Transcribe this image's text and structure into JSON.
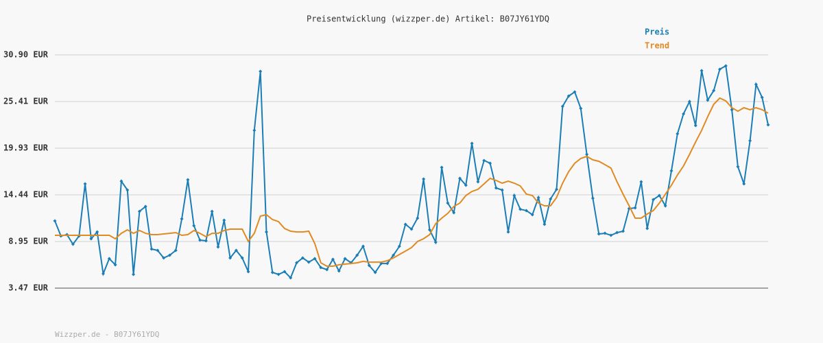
{
  "chart_data": {
    "type": "line",
    "title": "Preisentwicklung (wizzper.de) Artikel: B07JY61YDQ",
    "source": "Wizzper.de - B07JY61YDQ",
    "categories": [
      null,
      null,
      null,
      null,
      null,
      null,
      null,
      null,
      null,
      null,
      null,
      null,
      null,
      null,
      null,
      null,
      null,
      null,
      null,
      null,
      null,
      null,
      null,
      null,
      null,
      null,
      null,
      null,
      null,
      null,
      null,
      null,
      null,
      null,
      null,
      null,
      null,
      null,
      null,
      null,
      null,
      null,
      null,
      null,
      null,
      null,
      null,
      null,
      null,
      null,
      null,
      null,
      null,
      null,
      null,
      null,
      null,
      null,
      null,
      null,
      null,
      null,
      null,
      null,
      null,
      null,
      null,
      null,
      null,
      null,
      null,
      null,
      null,
      null,
      null,
      null,
      null,
      null,
      null,
      null,
      null,
      null,
      null,
      null,
      null,
      null,
      null,
      null,
      null,
      null,
      null,
      null,
      null,
      null,
      null,
      null,
      null,
      null,
      null,
      null,
      null,
      null,
      null,
      null,
      null,
      null,
      null,
      null,
      null,
      null,
      null,
      null,
      null,
      null,
      null,
      null,
      null,
      null,
      null
    ],
    "series": [
      {
        "name": "Preis",
        "color": "#1a7db6",
        "markers": true,
        "values": [
          11.38,
          9.6,
          9.76,
          8.63,
          9.6,
          15.73,
          9.28,
          10.08,
          5.16,
          6.94,
          6.21,
          16.05,
          15.01,
          5.08,
          12.5,
          13.07,
          8.07,
          7.91,
          7.02,
          7.34,
          7.91,
          11.62,
          16.22,
          10.81,
          9.12,
          9.04,
          12.5,
          8.31,
          11.46,
          7.02,
          7.91,
          7.02,
          5.41,
          22.03,
          28.96,
          10.08,
          5.32,
          5.08,
          5.41,
          4.68,
          6.45,
          7.02,
          6.53,
          6.94,
          5.89,
          5.65,
          6.86,
          5.49,
          6.94,
          6.45,
          7.34,
          8.39,
          6.13,
          5.32,
          6.37,
          6.37,
          7.34,
          8.39,
          10.97,
          10.41,
          11.7,
          16.3,
          10.33,
          8.87,
          17.67,
          13.47,
          12.34,
          16.38,
          15.57,
          20.49,
          15.97,
          18.48,
          18.15,
          15.25,
          15.01,
          10.08,
          14.36,
          12.75,
          12.59,
          12.1,
          14.12,
          10.97,
          13.96,
          15.09,
          24.85,
          26.06,
          26.54,
          24.61,
          19.2,
          14.04,
          9.84,
          9.92,
          9.68,
          10.0,
          10.17,
          12.83,
          12.91,
          15.97,
          10.49,
          13.88,
          14.36,
          13.15,
          17.27,
          21.62,
          23.96,
          25.41,
          22.59,
          29.04,
          25.58,
          26.7,
          29.21,
          29.61,
          24.45,
          17.75,
          15.73,
          20.81,
          27.43,
          25.9,
          22.67
        ]
      },
      {
        "name": "Trend",
        "color": "#e08a22",
        "markers": false,
        "values": [
          9.68,
          9.68,
          9.68,
          9.68,
          9.68,
          9.68,
          9.68,
          9.68,
          9.68,
          9.68,
          9.28,
          9.92,
          10.33,
          9.92,
          10.25,
          9.92,
          9.76,
          9.76,
          9.84,
          9.92,
          10.0,
          9.68,
          9.76,
          10.25,
          9.92,
          9.52,
          9.92,
          9.92,
          10.25,
          10.41,
          10.41,
          10.41,
          8.96,
          9.92,
          11.94,
          12.1,
          11.54,
          11.29,
          10.49,
          10.17,
          10.08,
          10.08,
          10.17,
          8.71,
          6.45,
          6.05,
          6.05,
          6.21,
          6.29,
          6.37,
          6.45,
          6.62,
          6.53,
          6.53,
          6.53,
          6.7,
          7.02,
          7.42,
          7.83,
          8.23,
          8.96,
          9.28,
          9.76,
          11.05,
          11.7,
          12.26,
          13.07,
          13.47,
          14.36,
          14.84,
          15.09,
          15.73,
          16.38,
          16.14,
          15.81,
          16.05,
          15.81,
          15.49,
          14.52,
          14.36,
          13.47,
          13.15,
          13.15,
          14.12,
          15.81,
          17.18,
          18.15,
          18.72,
          18.96,
          18.56,
          18.39,
          17.99,
          17.59,
          15.97,
          14.52,
          13.15,
          11.7,
          11.7,
          12.18,
          12.59,
          13.47,
          14.52,
          15.57,
          16.78,
          17.83,
          19.2,
          20.65,
          22.03,
          23.64,
          25.09,
          25.82,
          25.49,
          24.69,
          24.28,
          24.69,
          24.45,
          24.69,
          24.45,
          24.04
        ]
      }
    ],
    "ylim": [
      3.47,
      30.9
    ],
    "yticks": [
      {
        "value": 3.47,
        "label": "3.47 EUR"
      },
      {
        "value": 8.95,
        "label": "8.95 EUR"
      },
      {
        "value": 14.44,
        "label": "14.44 EUR"
      },
      {
        "value": 19.93,
        "label": "19.93 EUR"
      },
      {
        "value": 25.41,
        "label": "25.41 EUR"
      },
      {
        "value": 30.9,
        "label": "30.90 EUR"
      }
    ],
    "grid": true,
    "legend": "top-right"
  }
}
